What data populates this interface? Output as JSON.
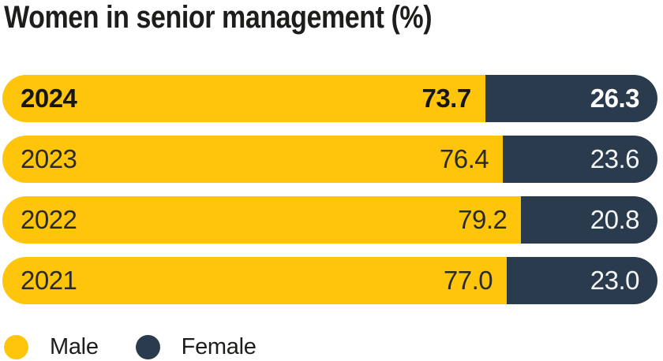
{
  "title": "Women in senior management (%)",
  "colors": {
    "male": "#fec50b",
    "female": "#2a3b4d",
    "title_text": "#1d1d1b",
    "value_text_on_dark": "#ffffff"
  },
  "rows": [
    {
      "year": "2024",
      "male_pct": 73.7,
      "female_pct": 26.3,
      "male_label": "73.7",
      "female_label": "26.3",
      "highlight": true
    },
    {
      "year": "2023",
      "male_pct": 76.4,
      "female_pct": 23.6,
      "male_label": "76.4",
      "female_label": "23.6",
      "highlight": false
    },
    {
      "year": "2022",
      "male_pct": 79.2,
      "female_pct": 20.8,
      "male_label": "79.2",
      "female_label": "20.8",
      "highlight": false
    },
    {
      "year": "2021",
      "male_pct": 77.0,
      "female_pct": 23.0,
      "male_label": "77.0",
      "female_label": "23.0",
      "highlight": false
    }
  ],
  "legend": {
    "items": [
      {
        "label": "Male",
        "color": "#fec50b"
      },
      {
        "label": "Female",
        "color": "#2a3b4d"
      }
    ]
  },
  "chart_data": {
    "type": "bar",
    "orientation": "horizontal",
    "stacked": true,
    "title": "Women in senior management (%)",
    "categories": [
      "2024",
      "2023",
      "2022",
      "2021"
    ],
    "series": [
      {
        "name": "Male",
        "color": "#fec50b",
        "values": [
          73.7,
          76.4,
          79.2,
          77.0
        ]
      },
      {
        "name": "Female",
        "color": "#2a3b4d",
        "values": [
          26.3,
          23.6,
          20.8,
          23.0
        ]
      }
    ],
    "unit": "%",
    "xlim": [
      0,
      100
    ],
    "legend_position": "bottom",
    "highlighted_category": "2024",
    "value_labels": "inside-end",
    "grid": false
  }
}
